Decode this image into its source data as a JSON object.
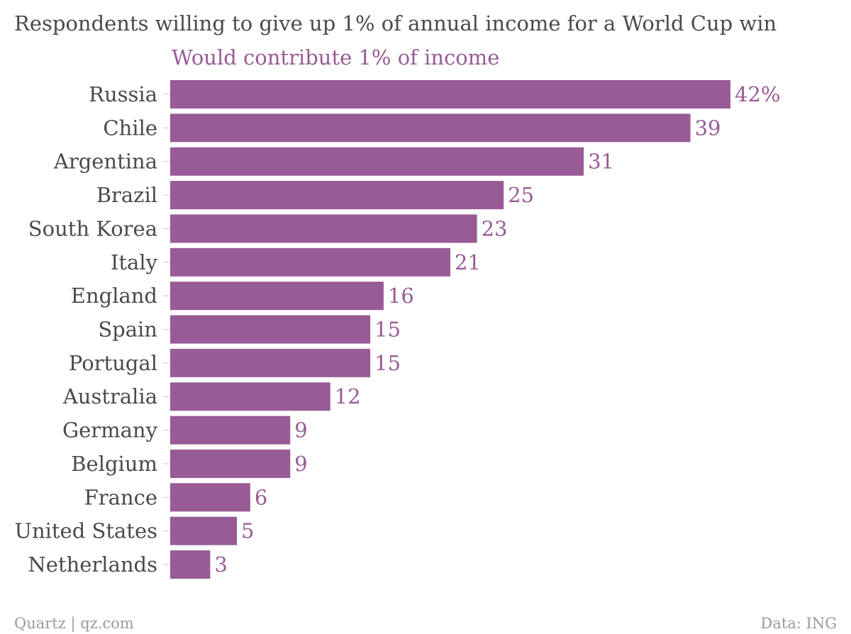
{
  "chart_data": {
    "type": "bar",
    "orientation": "horizontal",
    "title": "Respondents willing to give up 1% of annual income for a World Cup win",
    "series": [
      {
        "name": "Would contribute 1% of income",
        "values": [
          42,
          39,
          31,
          25,
          23,
          21,
          16,
          15,
          15,
          12,
          9,
          9,
          6,
          5,
          3
        ]
      }
    ],
    "categories": [
      "Russia",
      "Chile",
      "Argentina",
      "Brazil",
      "South Korea",
      "Italy",
      "England",
      "Spain",
      "Portugal",
      "Australia",
      "Germany",
      "Belgium",
      "France",
      "United States",
      "Netherlands"
    ],
    "value_labels": [
      "42%",
      "39",
      "31",
      "25",
      "23",
      "21",
      "16",
      "15",
      "15",
      "12",
      "9",
      "9",
      "6",
      "5",
      "3"
    ],
    "xlim": [
      0,
      42
    ],
    "grid": false,
    "color": "#985b96"
  },
  "footer": {
    "source_left": "Quartz | qz.com",
    "source_right": "Data: ING"
  }
}
